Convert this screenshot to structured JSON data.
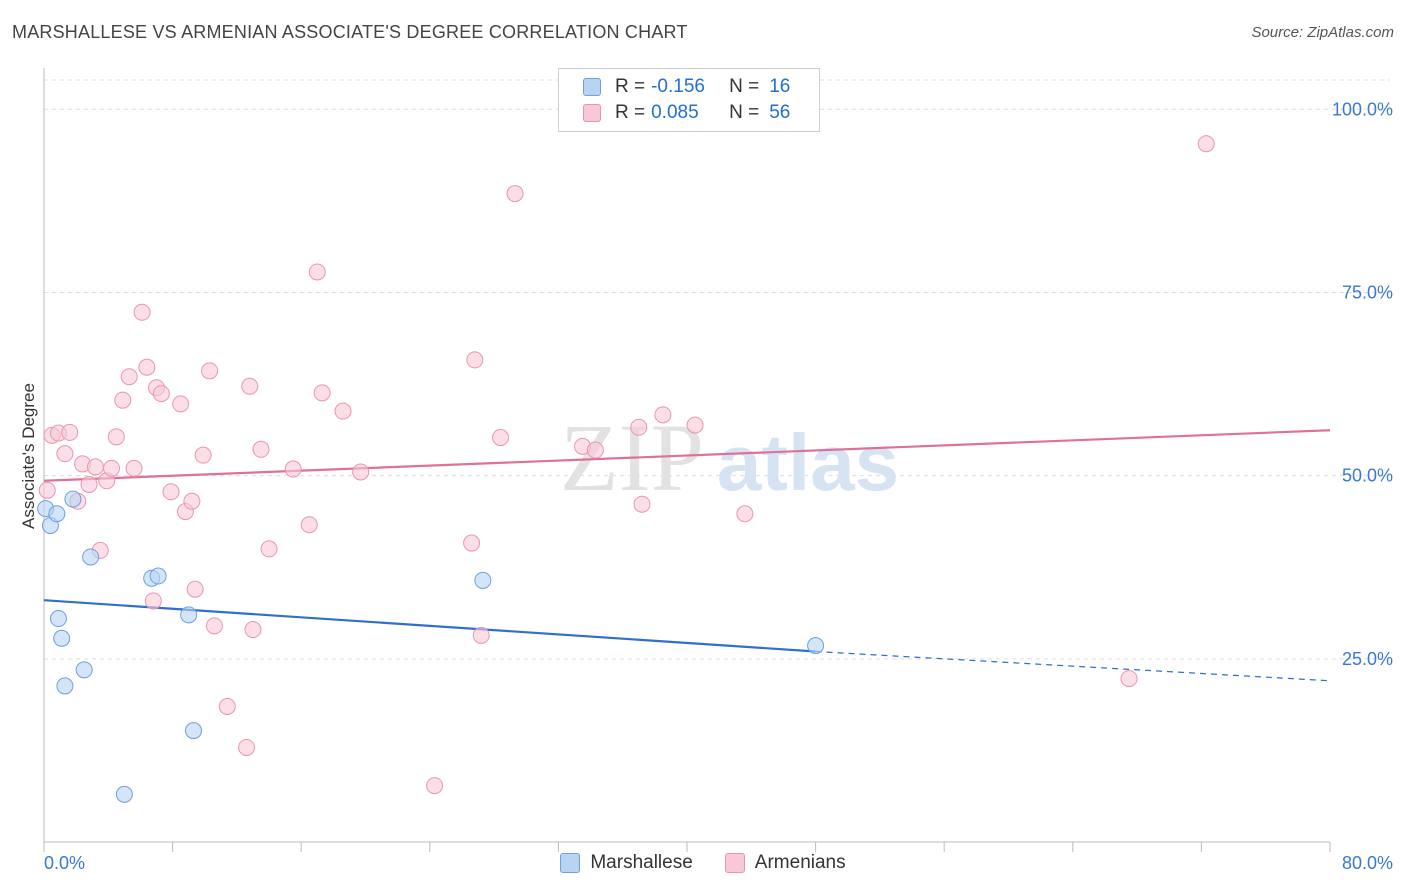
{
  "title": "MARSHALLESE VS ARMENIAN ASSOCIATE'S DEGREE CORRELATION CHART",
  "source": "Source: ZipAtlas.com",
  "watermark": {
    "zip": "ZIP",
    "atlas": "atlas"
  },
  "colors": {
    "marshallese_fill": "#b9d3f3",
    "marshallese_stroke": "#6b9fe0",
    "marshallese_line": "#2f6fcf",
    "armenian_fill": "#f8c8d6",
    "armenian_stroke": "#e896b0",
    "armenian_line": "#e07098",
    "axis_label": "#3a78d4",
    "grid": "#dddddd"
  },
  "legend": {
    "rows": [
      {
        "r_label": "R =",
        "r_value": "-0.156",
        "n_label": "N =",
        "n_value": "16"
      },
      {
        "r_label": "R =",
        "r_value": "0.085",
        "n_label": "N =",
        "n_value": "56"
      }
    ]
  },
  "bottom_legend": [
    "Marshallese",
    "Armenians"
  ],
  "chart_data": {
    "type": "scatter",
    "title": "MARSHALLESE VS ARMENIAN ASSOCIATE'S DEGREE CORRELATION CHART",
    "xlabel": "",
    "ylabel": "Associate's Degree",
    "xlim": [
      0,
      80
    ],
    "ylim": [
      0,
      104
    ],
    "x_tick_labels": [
      "0.0%",
      "80.0%"
    ],
    "y_ticks": [
      25,
      50,
      75,
      100
    ],
    "y_tick_labels": [
      "25.0%",
      "50.0%",
      "75.0%",
      "100.0%"
    ],
    "grid": true,
    "series": [
      {
        "name": "Marshallese",
        "r": -0.156,
        "n": 16,
        "points": [
          [
            0.1,
            45.5
          ],
          [
            0.4,
            43.2
          ],
          [
            0.8,
            44.8
          ],
          [
            0.9,
            30.5
          ],
          [
            1.1,
            27.8
          ],
          [
            1.3,
            21.3
          ],
          [
            1.8,
            46.8
          ],
          [
            2.5,
            23.5
          ],
          [
            2.9,
            38.9
          ],
          [
            5.0,
            6.5
          ],
          [
            6.7,
            36.0
          ],
          [
            7.1,
            36.3
          ],
          [
            9.0,
            31.0
          ],
          [
            9.3,
            15.2
          ],
          [
            27.3,
            35.7
          ],
          [
            48.0,
            26.8
          ]
        ],
        "trend": {
          "x0": 0,
          "y0": 33.0,
          "x1": 48.0,
          "y1": 26.0,
          "dash_to_x": 80,
          "dash_to_y": 22.0
        }
      },
      {
        "name": "Armenians",
        "r": 0.085,
        "n": 56,
        "points": [
          [
            0.2,
            48.0
          ],
          [
            0.5,
            55.5
          ],
          [
            0.9,
            55.8
          ],
          [
            1.3,
            53.0
          ],
          [
            1.6,
            55.9
          ],
          [
            2.1,
            46.5
          ],
          [
            2.4,
            51.6
          ],
          [
            2.8,
            48.8
          ],
          [
            3.2,
            51.2
          ],
          [
            3.5,
            39.8
          ],
          [
            3.9,
            49.3
          ],
          [
            4.2,
            51.0
          ],
          [
            4.5,
            55.3
          ],
          [
            4.9,
            60.3
          ],
          [
            5.3,
            63.5
          ],
          [
            5.6,
            51.0
          ],
          [
            6.1,
            72.3
          ],
          [
            6.4,
            64.8
          ],
          [
            6.8,
            32.9
          ],
          [
            7.0,
            62.0
          ],
          [
            7.3,
            61.2
          ],
          [
            7.9,
            47.8
          ],
          [
            8.5,
            59.8
          ],
          [
            8.8,
            45.1
          ],
          [
            9.2,
            46.5
          ],
          [
            9.4,
            34.5
          ],
          [
            9.9,
            52.8
          ],
          [
            10.3,
            64.3
          ],
          [
            10.6,
            29.5
          ],
          [
            11.4,
            18.5
          ],
          [
            12.6,
            12.9
          ],
          [
            12.8,
            62.2
          ],
          [
            13.0,
            29.0
          ],
          [
            13.5,
            53.6
          ],
          [
            14.0,
            40.0
          ],
          [
            15.5,
            50.9
          ],
          [
            16.5,
            43.3
          ],
          [
            17.0,
            77.8
          ],
          [
            17.3,
            61.3
          ],
          [
            18.6,
            58.8
          ],
          [
            19.7,
            50.5
          ],
          [
            24.3,
            7.7
          ],
          [
            26.6,
            40.8
          ],
          [
            26.8,
            65.8
          ],
          [
            27.2,
            28.2
          ],
          [
            28.4,
            55.2
          ],
          [
            29.3,
            88.5
          ],
          [
            33.5,
            54.0
          ],
          [
            34.3,
            53.5
          ],
          [
            37.0,
            56.6
          ],
          [
            37.2,
            46.1
          ],
          [
            38.5,
            58.3
          ],
          [
            40.5,
            56.9
          ],
          [
            43.6,
            44.8
          ],
          [
            67.5,
            22.3
          ],
          [
            72.3,
            95.3
          ]
        ],
        "trend": {
          "x0": 0,
          "y0": 49.3,
          "x1": 80,
          "y1": 56.2
        }
      }
    ]
  }
}
